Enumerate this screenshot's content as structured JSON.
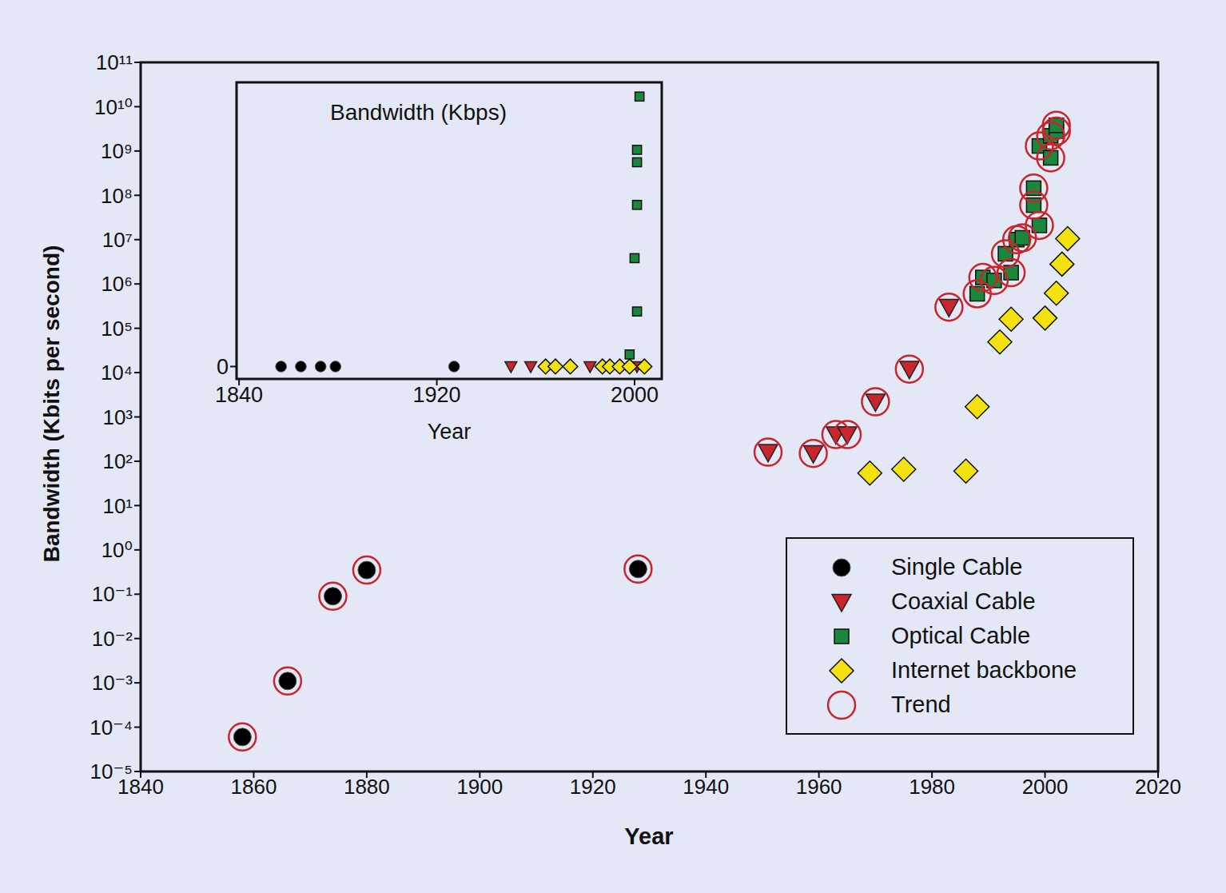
{
  "chart_data": [
    {
      "type": "scatter",
      "xlabel": "Year",
      "ylabel": "Bandwidth (Kbits per second)",
      "log": "y",
      "legend": "lower right",
      "xlim": [
        1840,
        2020
      ],
      "xticks": [
        1840,
        1860,
        1880,
        1900,
        1920,
        1940,
        1960,
        1980,
        2000,
        2020
      ],
      "ylim": [
        1e-05,
        100000000000.0
      ],
      "yticks": [
        {
          "value": 1e-05,
          "label": "10⁻⁵"
        },
        {
          "value": 0.0001,
          "label": "10⁻⁴"
        },
        {
          "value": 0.001,
          "label": "10⁻³"
        },
        {
          "value": 0.01,
          "label": "10⁻²"
        },
        {
          "value": 0.1,
          "label": "10⁻¹"
        },
        {
          "value": 1,
          "label": "10⁰"
        },
        {
          "value": 10,
          "label": "10¹"
        },
        {
          "value": 100,
          "label": "10²"
        },
        {
          "value": 1000,
          "label": "10³"
        },
        {
          "value": 10000,
          "label": "10⁴"
        },
        {
          "value": 100000,
          "label": "10⁵"
        },
        {
          "value": 1000000,
          "label": "10⁶"
        },
        {
          "value": 10000000,
          "label": "10⁷"
        },
        {
          "value": 100000000,
          "label": "10⁸"
        },
        {
          "value": 1000000000,
          "label": "10⁹"
        },
        {
          "value": 10000000000,
          "label": "10¹⁰"
        },
        {
          "value": 100000000000,
          "label": "10¹¹"
        }
      ],
      "series": [
        {
          "name": "Single Cable",
          "color": "#000000",
          "marker": "circle",
          "x": [
            1858,
            1866,
            1874,
            1880,
            1928
          ],
          "values": [
            6e-05,
            0.0011,
            0.09,
            0.35,
            0.37
          ]
        },
        {
          "name": "Coaxial Cable",
          "color": "#c8252c",
          "marker": "triangle_down",
          "x": [
            1951,
            1959,
            1963,
            1965,
            1970,
            1976,
            1983
          ],
          "values": [
            160,
            150,
            400,
            400,
            2200,
            12000,
            300000
          ]
        },
        {
          "name": "Optical Cable",
          "color": "#19873c",
          "marker": "square",
          "x": [
            1988,
            1989,
            1991,
            1993,
            1994,
            1995,
            1996,
            1998,
            1998,
            1999,
            1999,
            2001,
            2001,
            2002,
            2002
          ],
          "values": [
            600000,
            1400000,
            1200000,
            4800000,
            1800000,
            10000000,
            11000000,
            60000000,
            145000000,
            21000000,
            1300000000,
            700000000,
            2200000000,
            2800000000,
            3800000000
          ]
        },
        {
          "name": "Internet backbone",
          "color": "#f4e110",
          "marker": "diamond",
          "x": [
            1969,
            1975,
            1986,
            1988,
            1992,
            1994,
            2000,
            2002,
            2003,
            2004
          ],
          "values": [
            54,
            66,
            60,
            1700,
            49000,
            160000,
            170000,
            620000,
            2800000,
            10500000
          ]
        },
        {
          "name": "Trend",
          "color": "#c8252c",
          "marker": "open_circle",
          "x": [
            1858,
            1866,
            1874,
            1880,
            1928,
            1951,
            1959,
            1963,
            1965,
            1970,
            1976,
            1983,
            1988,
            1989,
            1991,
            1993,
            1994,
            1995,
            1996,
            1998,
            1998,
            1999,
            1999,
            2001,
            2001,
            2002,
            2002
          ],
          "values": [
            6e-05,
            0.0011,
            0.09,
            0.35,
            0.37,
            160,
            150,
            400,
            400,
            2200,
            12000,
            300000,
            600000,
            1400000,
            1200000,
            4800000,
            1800000,
            10000000,
            11000000,
            60000000,
            145000000,
            21000000,
            1300000000,
            700000000,
            2200000000,
            2800000000,
            3800000000
          ]
        }
      ]
    },
    {
      "type": "scatter",
      "title": "Bandwidth (Kbps)",
      "xlabel": "Year",
      "xlim": [
        1839,
        2011
      ],
      "xticks": [
        1840,
        1920,
        2000
      ],
      "ylim": [
        -700000000,
        16000000000
      ],
      "yticks": [
        0
      ],
      "series": [
        {
          "color": "#000000",
          "marker": "circle",
          "x": [
            1857,
            1865,
            1873,
            1879,
            1927
          ],
          "values": [
            0,
            0,
            0,
            0,
            0
          ]
        },
        {
          "color": "#c8252c",
          "marker": "triangle_down",
          "x": [
            1950,
            1958,
            1982,
            2001
          ],
          "values": [
            0,
            0,
            0,
            0
          ]
        },
        {
          "color": "#f4e110",
          "marker": "diamond",
          "x": [
            1964,
            1968,
            1974,
            1987,
            1990,
            1994,
            1998,
            2004
          ],
          "values": [
            0,
            0,
            0,
            0,
            0,
            0,
            0,
            0
          ]
        },
        {
          "color": "#19873c",
          "marker": "square",
          "x": [
            1998,
            2001,
            2000,
            2001,
            2001,
            2001,
            2002
          ],
          "values": [
            680000000,
            3100000000,
            6100000000,
            9100000000,
            11500000000,
            12200000000,
            15200000000
          ]
        }
      ]
    }
  ]
}
